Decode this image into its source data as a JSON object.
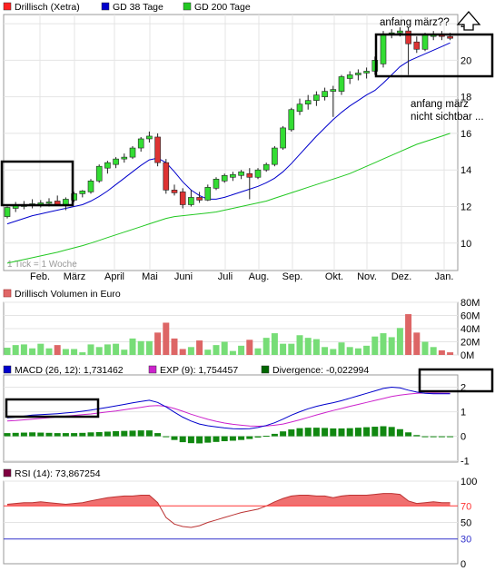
{
  "price_panel": {
    "legend": [
      {
        "label": "Drillisch (Xetra)",
        "color": "#ff2020"
      },
      {
        "label": "GD 38 Tage",
        "color": "#0000cc"
      },
      {
        "label": "GD 200 Tage",
        "color": "#22c822"
      }
    ],
    "tick_note": "1 Tick = 1 Woche",
    "annotations": {
      "top": "anfang märz??",
      "right_line1": "anfang märz",
      "right_line2": "nicht sichtbar ..."
    }
  },
  "volume_panel": {
    "title": "Drillisch Volumen in Euro",
    "title_color": "#e06666"
  },
  "macd_panel": {
    "legend": [
      {
        "label": "MACD (26, 12): 1,731462",
        "color": "#0000cc"
      },
      {
        "label": "EXP (9): 1,754457",
        "color": "#cc22cc"
      },
      {
        "label": "Divergence: -0,022994",
        "color": "#006600"
      }
    ]
  },
  "rsi_panel": {
    "legend": [
      {
        "label": "RSI (14): 73,867254",
        "color": "#800040"
      }
    ]
  },
  "chart_data": [
    {
      "type": "candlestick",
      "title": "",
      "x_tick_labels": [
        "Feb.",
        "März",
        "April",
        "Mai",
        "Juni",
        "Juli",
        "Aug.",
        "Sep.",
        "Okt.",
        "Nov.",
        "Dez.",
        "Jan."
      ],
      "y_tick_labels": [
        "10",
        "12",
        "14",
        "16",
        "18",
        "20",
        "22"
      ],
      "ylim": [
        8.5,
        22.5
      ],
      "grid": true,
      "candles": [
        {
          "o": 11.45,
          "h": 12.0,
          "l": 11.35,
          "c": 11.95
        },
        {
          "o": 11.9,
          "h": 12.25,
          "l": 11.7,
          "c": 12.05
        },
        {
          "o": 12.0,
          "h": 12.3,
          "l": 11.85,
          "c": 12.1
        },
        {
          "o": 12.1,
          "h": 12.4,
          "l": 11.9,
          "c": 12.15
        },
        {
          "o": 12.1,
          "h": 12.35,
          "l": 11.95,
          "c": 12.2
        },
        {
          "o": 12.2,
          "h": 12.45,
          "l": 12.0,
          "c": 12.25
        },
        {
          "o": 12.3,
          "h": 12.6,
          "l": 12.05,
          "c": 12.1
        },
        {
          "o": 12.1,
          "h": 12.5,
          "l": 11.8,
          "c": 12.4
        },
        {
          "o": 12.35,
          "h": 12.8,
          "l": 12.25,
          "c": 12.7
        },
        {
          "o": 12.7,
          "h": 12.9,
          "l": 12.5,
          "c": 12.85
        },
        {
          "o": 12.8,
          "h": 13.5,
          "l": 12.7,
          "c": 13.4
        },
        {
          "o": 13.4,
          "h": 14.3,
          "l": 13.3,
          "c": 14.2
        },
        {
          "o": 14.1,
          "h": 14.5,
          "l": 13.8,
          "c": 14.4
        },
        {
          "o": 14.3,
          "h": 14.7,
          "l": 14.1,
          "c": 14.6
        },
        {
          "o": 14.6,
          "h": 14.9,
          "l": 14.4,
          "c": 14.7
        },
        {
          "o": 14.7,
          "h": 15.3,
          "l": 14.6,
          "c": 15.2
        },
        {
          "o": 15.2,
          "h": 15.8,
          "l": 15.0,
          "c": 15.7
        },
        {
          "o": 15.7,
          "h": 16.1,
          "l": 15.5,
          "c": 15.85
        },
        {
          "o": 15.8,
          "h": 16.0,
          "l": 14.2,
          "c": 14.4
        },
        {
          "o": 14.4,
          "h": 14.6,
          "l": 12.7,
          "c": 12.9
        },
        {
          "o": 12.9,
          "h": 13.2,
          "l": 12.6,
          "c": 12.75
        },
        {
          "o": 12.8,
          "h": 13.0,
          "l": 11.9,
          "c": 12.1
        },
        {
          "o": 12.1,
          "h": 12.9,
          "l": 12.0,
          "c": 12.5
        },
        {
          "o": 12.5,
          "h": 12.8,
          "l": 12.2,
          "c": 12.35
        },
        {
          "o": 12.35,
          "h": 13.2,
          "l": 12.3,
          "c": 13.05
        },
        {
          "o": 13.0,
          "h": 13.6,
          "l": 12.9,
          "c": 13.5
        },
        {
          "o": 13.4,
          "h": 13.8,
          "l": 13.3,
          "c": 13.7
        },
        {
          "o": 13.6,
          "h": 13.9,
          "l": 13.4,
          "c": 13.75
        },
        {
          "o": 13.7,
          "h": 14.0,
          "l": 13.5,
          "c": 13.9
        },
        {
          "o": 13.8,
          "h": 14.1,
          "l": 12.4,
          "c": 13.6
        },
        {
          "o": 13.6,
          "h": 14.1,
          "l": 13.5,
          "c": 14.0
        },
        {
          "o": 14.0,
          "h": 14.4,
          "l": 13.9,
          "c": 14.3
        },
        {
          "o": 14.3,
          "h": 15.3,
          "l": 14.2,
          "c": 15.2
        },
        {
          "o": 15.2,
          "h": 16.4,
          "l": 15.1,
          "c": 16.3
        },
        {
          "o": 16.2,
          "h": 17.4,
          "l": 16.1,
          "c": 17.3
        },
        {
          "o": 17.2,
          "h": 17.9,
          "l": 17.0,
          "c": 17.6
        },
        {
          "o": 17.6,
          "h": 18.1,
          "l": 17.3,
          "c": 17.8
        },
        {
          "o": 17.8,
          "h": 18.3,
          "l": 17.5,
          "c": 18.1
        },
        {
          "o": 18.0,
          "h": 18.5,
          "l": 17.8,
          "c": 18.3
        },
        {
          "o": 18.3,
          "h": 18.6,
          "l": 16.9,
          "c": 18.4
        },
        {
          "o": 18.3,
          "h": 19.2,
          "l": 18.1,
          "c": 19.1
        },
        {
          "o": 19.0,
          "h": 19.4,
          "l": 18.7,
          "c": 19.2
        },
        {
          "o": 19.2,
          "h": 19.5,
          "l": 18.9,
          "c": 19.3
        },
        {
          "o": 19.3,
          "h": 19.6,
          "l": 19.0,
          "c": 19.4
        },
        {
          "o": 19.4,
          "h": 20.2,
          "l": 19.2,
          "c": 20.0
        },
        {
          "o": 19.8,
          "h": 21.6,
          "l": 19.6,
          "c": 21.4
        },
        {
          "o": 21.4,
          "h": 21.7,
          "l": 21.2,
          "c": 21.5
        },
        {
          "o": 21.5,
          "h": 21.8,
          "l": 21.3,
          "c": 21.6
        },
        {
          "o": 21.6,
          "h": 21.8,
          "l": 19.2,
          "c": 20.9
        },
        {
          "o": 21.0,
          "h": 21.3,
          "l": 20.4,
          "c": 20.6
        },
        {
          "o": 20.6,
          "h": 21.5,
          "l": 20.5,
          "c": 21.4
        },
        {
          "o": 21.3,
          "h": 21.6,
          "l": 21.1,
          "c": 21.4
        },
        {
          "o": 21.4,
          "h": 21.6,
          "l": 21.1,
          "c": 21.3
        },
        {
          "o": 21.3,
          "h": 21.5,
          "l": 21.1,
          "c": 21.2
        }
      ],
      "series": [
        {
          "name": "GD 38 Tage",
          "color": "#0000cc",
          "values": [
            11.05,
            11.2,
            11.35,
            11.5,
            11.6,
            11.7,
            11.8,
            11.9,
            12.0,
            12.1,
            12.3,
            12.55,
            12.85,
            13.2,
            13.55,
            13.9,
            14.25,
            14.55,
            14.65,
            14.4,
            13.9,
            13.35,
            12.9,
            12.6,
            12.4,
            12.4,
            12.5,
            12.65,
            12.8,
            12.95,
            13.1,
            13.3,
            13.55,
            13.9,
            14.35,
            14.85,
            15.35,
            15.85,
            16.3,
            16.75,
            17.15,
            17.5,
            17.8,
            18.1,
            18.35,
            18.75,
            19.2,
            19.65,
            19.95,
            20.15,
            20.35,
            20.55,
            20.75,
            20.95
          ]
        },
        {
          "name": "GD 200 Tage",
          "color": "#22c822",
          "values": [
            8.9,
            9.0,
            9.1,
            9.2,
            9.3,
            9.4,
            9.5,
            9.62,
            9.74,
            9.86,
            10.0,
            10.15,
            10.3,
            10.45,
            10.6,
            10.75,
            10.9,
            11.05,
            11.2,
            11.35,
            11.45,
            11.5,
            11.55,
            11.6,
            11.65,
            11.7,
            11.8,
            11.9,
            12.0,
            12.1,
            12.2,
            12.3,
            12.45,
            12.6,
            12.75,
            12.9,
            13.05,
            13.2,
            13.35,
            13.5,
            13.65,
            13.8,
            14.0,
            14.2,
            14.4,
            14.6,
            14.8,
            15.0,
            15.2,
            15.4,
            15.55,
            15.7,
            15.85,
            16.0
          ]
        }
      ]
    },
    {
      "type": "bar",
      "title": "Drillisch Volumen in Euro",
      "y_tick_labels": [
        "0M",
        "20M",
        "40M",
        "60M",
        "80M"
      ],
      "ylim": [
        0,
        80
      ],
      "grid": true,
      "values": [
        11,
        15,
        16,
        10,
        17,
        10,
        15,
        9,
        9,
        4,
        16,
        12,
        16,
        17,
        8,
        25,
        21,
        21,
        34,
        49,
        25,
        9,
        12,
        22,
        8,
        15,
        20,
        6,
        14,
        23,
        10,
        26,
        33,
        17,
        17,
        30,
        26,
        24,
        12,
        9,
        19,
        12,
        10,
        14,
        28,
        33,
        27,
        41,
        62,
        34,
        20,
        12,
        7,
        4
      ],
      "colors_by_candle_direction": {
        "up": "#77dd77",
        "down": "#dd6666"
      }
    },
    {
      "type": "line",
      "title": "",
      "y_tick_labels": [
        "-1",
        "0",
        "1",
        "2"
      ],
      "ylim": [
        -1.05,
        2.5
      ],
      "grid": true,
      "series": [
        {
          "name": "MACD (26, 12): 1,731462",
          "color": "#0000cc",
          "values": [
            0.75,
            0.78,
            0.82,
            0.86,
            0.88,
            0.9,
            0.92,
            0.95,
            0.98,
            1.02,
            1.07,
            1.12,
            1.18,
            1.24,
            1.3,
            1.36,
            1.42,
            1.47,
            1.38,
            1.2,
            0.98,
            0.78,
            0.62,
            0.5,
            0.43,
            0.38,
            0.34,
            0.31,
            0.3,
            0.31,
            0.36,
            0.44,
            0.55,
            0.7,
            0.86,
            1.0,
            1.12,
            1.22,
            1.3,
            1.37,
            1.45,
            1.55,
            1.65,
            1.75,
            1.85,
            1.95,
            2.0,
            1.97,
            1.88,
            1.8,
            1.75,
            1.73,
            1.73,
            1.73
          ]
        },
        {
          "name": "EXP (9): 1,754457",
          "color": "#cc22cc",
          "values": [
            0.62,
            0.64,
            0.67,
            0.7,
            0.73,
            0.76,
            0.79,
            0.82,
            0.85,
            0.88,
            0.91,
            0.95,
            0.99,
            1.03,
            1.08,
            1.13,
            1.18,
            1.23,
            1.25,
            1.22,
            1.13,
            1.02,
            0.9,
            0.79,
            0.69,
            0.61,
            0.54,
            0.49,
            0.45,
            0.42,
            0.41,
            0.42,
            0.45,
            0.5,
            0.58,
            0.67,
            0.77,
            0.87,
            0.96,
            1.05,
            1.13,
            1.22,
            1.3,
            1.38,
            1.46,
            1.54,
            1.62,
            1.68,
            1.72,
            1.75,
            1.76,
            1.76,
            1.755,
            1.754
          ]
        },
        {
          "name": "Divergence: -0,022994",
          "color": "#006600",
          "kind": "histogram",
          "values": [
            0.13,
            0.14,
            0.15,
            0.16,
            0.15,
            0.14,
            0.13,
            0.13,
            0.13,
            0.14,
            0.16,
            0.17,
            0.19,
            0.21,
            0.22,
            0.23,
            0.24,
            0.24,
            0.13,
            -0.02,
            -0.15,
            -0.24,
            -0.28,
            -0.29,
            -0.26,
            -0.23,
            -0.2,
            -0.18,
            -0.15,
            -0.11,
            -0.05,
            0.02,
            0.1,
            0.2,
            0.28,
            0.33,
            0.35,
            0.35,
            0.34,
            0.32,
            0.32,
            0.33,
            0.35,
            0.37,
            0.39,
            0.41,
            0.38,
            0.29,
            0.16,
            0.05,
            -0.01,
            -0.03,
            -0.025,
            -0.023
          ]
        }
      ]
    },
    {
      "type": "area",
      "title": "",
      "y_tick_labels": [
        "0",
        "30",
        "50",
        "70",
        "100"
      ],
      "ylim": [
        0,
        100
      ],
      "reference_lines": [
        {
          "value": 70,
          "color": "#ff3333"
        },
        {
          "value": 30,
          "color": "#3333cc"
        }
      ],
      "series": [
        {
          "name": "RSI (14): 73,867254",
          "color": "#cc3333",
          "values": [
            72,
            73,
            74,
            74,
            75,
            74,
            73,
            72,
            73,
            74,
            76,
            78,
            80,
            81,
            82,
            82,
            83,
            83,
            74,
            56,
            48,
            45,
            44,
            46,
            50,
            53,
            56,
            59,
            62,
            64,
            66,
            70,
            75,
            79,
            82,
            83,
            83,
            82,
            82,
            80,
            82,
            83,
            83,
            83,
            84,
            85,
            85,
            84,
            76,
            73,
            74,
            75,
            74,
            73.9
          ]
        }
      ]
    }
  ]
}
